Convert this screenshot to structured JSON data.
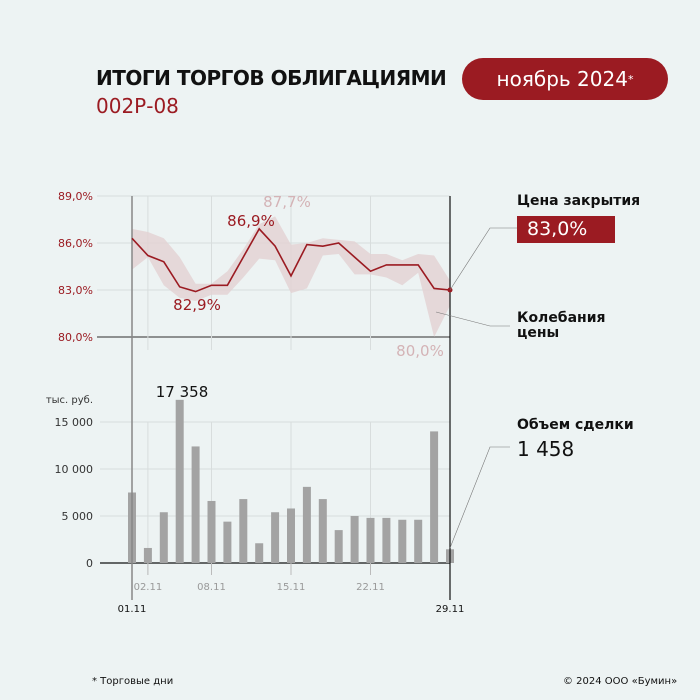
{
  "header": {
    "title": "ИТОГИ ТОРГОВ ОБЛИГАЦИЯМИ",
    "subtitle": "002Р-08",
    "period": "ноябрь 2024",
    "period_mark": "*"
  },
  "legend": {
    "close_label": "Цена закрытия",
    "close_value": "83,0%",
    "range_label_1": "Колебания",
    "range_label_2": "цены",
    "volume_label": "Объем сделки",
    "volume_value": "1 458"
  },
  "footer": {
    "note": "* Торговые дни",
    "copyright": "© 2024 ООО «Бумин»"
  },
  "colors": {
    "accent": "#9b1b22",
    "band": "#e3d2d4",
    "bars": "#a3a3a3"
  },
  "chart_data": [
    {
      "type": "line",
      "ylim": [
        80,
        89
      ],
      "yticks": [
        "80,0%",
        "83,0%",
        "86,0%",
        "89,0%"
      ],
      "ytick_values": [
        80,
        83,
        86,
        89
      ],
      "close": [
        86.3,
        85.2,
        84.8,
        83.2,
        82.9,
        83.3,
        83.3,
        85.1,
        86.9,
        85.8,
        83.9,
        85.9,
        85.8,
        86.0,
        85.1,
        84.2,
        84.6,
        84.6,
        84.6,
        83.1,
        83.0
      ],
      "high": [
        86.9,
        86.7,
        86.3,
        85.1,
        83.4,
        83.4,
        84.2,
        85.6,
        87.2,
        87.7,
        85.9,
        86.0,
        86.3,
        86.2,
        86.1,
        85.3,
        85.3,
        84.9,
        85.3,
        85.2,
        83.6
      ],
      "low": [
        84.3,
        85.1,
        83.3,
        82.5,
        82.3,
        82.7,
        82.7,
        83.8,
        85.0,
        84.9,
        82.8,
        83.1,
        85.2,
        85.3,
        84.0,
        84.0,
        83.8,
        83.3,
        84.1,
        80.0,
        82.0
      ],
      "annotations": {
        "max_high": "87,7%",
        "max_close": "86,9%",
        "min_close": "82,9%",
        "min_low": "80,0%"
      }
    },
    {
      "type": "bar",
      "ylabel": "тыс. руб.",
      "ylim": [
        0,
        17358
      ],
      "yticks": [
        "0",
        "5 000",
        "10 000",
        "15 000"
      ],
      "ytick_values": [
        0,
        5000,
        10000,
        15000
      ],
      "values": [
        7500,
        1600,
        5400,
        17358,
        12400,
        6600,
        4400,
        6800,
        2100,
        5400,
        5800,
        8100,
        6800,
        3500,
        5000,
        4800,
        4800,
        4600,
        4600,
        14000,
        1458
      ],
      "max_label": "17 358",
      "xticks": [
        "01.11",
        "02.11",
        "08.11",
        "15.11",
        "22.11",
        "29.11"
      ],
      "xtick_index": [
        0,
        1,
        5,
        10,
        15,
        20
      ]
    }
  ]
}
